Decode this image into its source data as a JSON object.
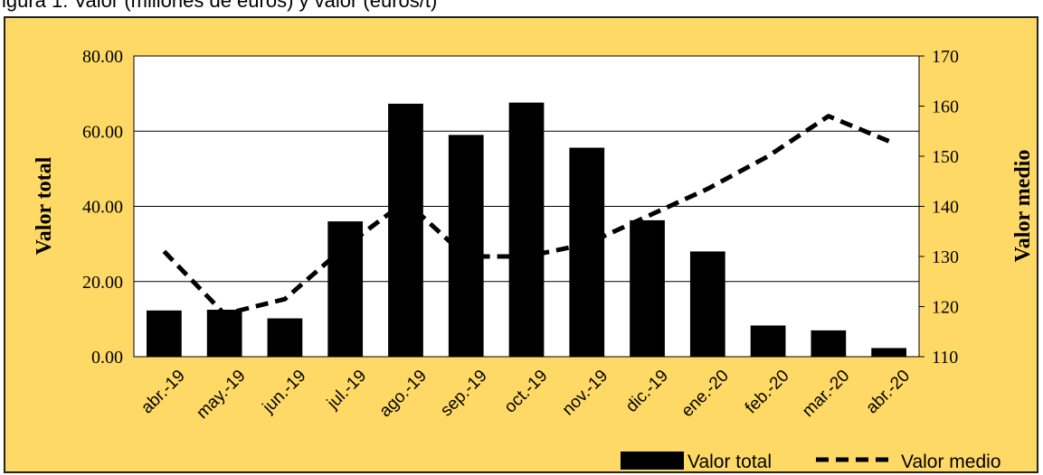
{
  "figure": {
    "title_partial": "igura 1. Valor (millones de euros) y valor (euros/t)"
  },
  "colors": {
    "background": "#FFD966",
    "plot_area": "#FFFFFF",
    "bars": "#000000",
    "line": "#000000"
  },
  "chart_data": {
    "type": "bar",
    "categories": [
      "abr.-19",
      "may.-19",
      "jun.-19",
      "jul.-19",
      "ago.-19",
      "sep.-19",
      "oct.-19",
      "nov.-19",
      "dic.-19",
      "ene.-20",
      "feb.-20",
      "mar.-20",
      "abr.-20"
    ],
    "series": [
      {
        "name": "Valor total",
        "type": "bar",
        "axis": "left",
        "values": [
          12.3,
          12.5,
          10.2,
          36.0,
          67.3,
          59.0,
          67.6,
          55.6,
          36.3,
          28.0,
          8.3,
          7.0,
          2.3
        ]
      },
      {
        "name": "Valor medio",
        "type": "line",
        "style": "dashed",
        "axis": "right",
        "values": [
          131,
          118.5,
          121.5,
          132,
          141,
          130,
          130,
          132.5,
          138,
          143.5,
          150,
          158,
          153
        ]
      }
    ],
    "xlabel": "",
    "ylabel": "Valor total",
    "y2label": "Valor medio",
    "ylim": [
      0,
      80
    ],
    "y2lim": [
      110,
      170
    ],
    "yticks": [
      "0.00",
      "20.00",
      "40.00",
      "60.00",
      "80.00"
    ],
    "y2ticks": [
      "110",
      "120",
      "130",
      "140",
      "150",
      "160",
      "170"
    ],
    "grid": true,
    "legend": {
      "position": "bottom-right",
      "entries": [
        "Valor total",
        "Valor medio"
      ]
    }
  }
}
